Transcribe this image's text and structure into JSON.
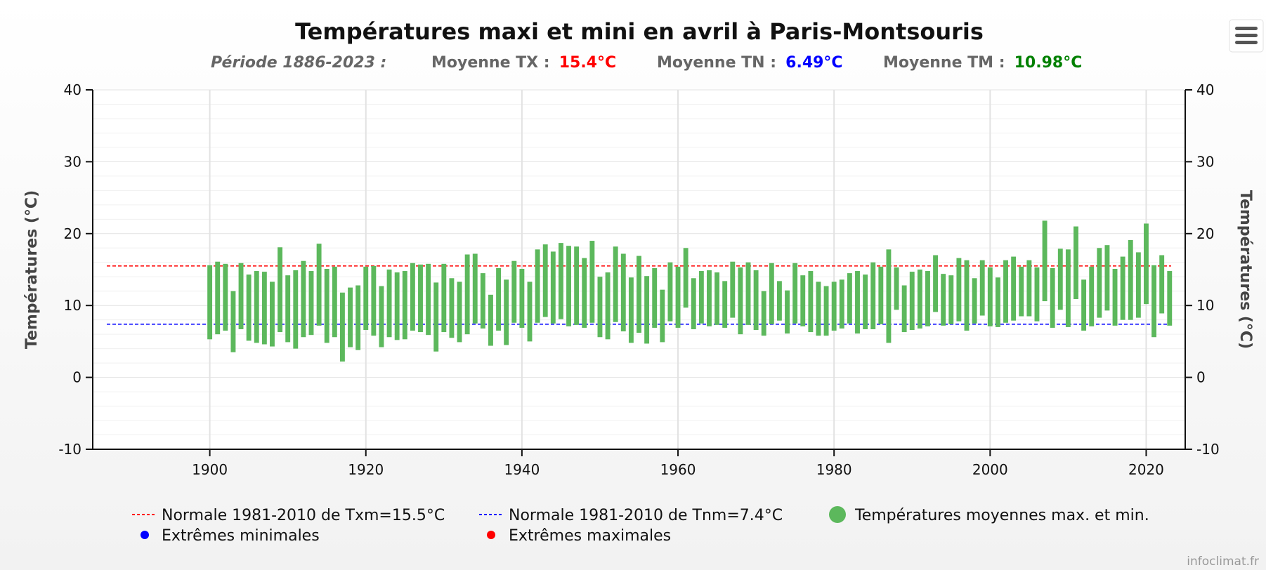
{
  "chart_data": {
    "type": "bar",
    "title": "Températures maxi et mini en avril à Paris-Montsouris",
    "subtitle": {
      "period": "Période 1886-2023 :",
      "tx_label": "Moyenne TX :",
      "tx_value": "15.4°C",
      "tn_label": "Moyenne TN :",
      "tn_value": "6.49°C",
      "tm_label": "Moyenne TM :",
      "tm_value": "10.98°C"
    },
    "ylabel_left": "Températures (°C)",
    "ylabel_right": "Températures (°C)",
    "ylim": [
      -10,
      40
    ],
    "xlim": [
      1885,
      2025
    ],
    "x_ticks": [
      "1900",
      "1920",
      "1940",
      "1960",
      "1980",
      "2000",
      "2020"
    ],
    "y_ticks": [
      "-10",
      "0",
      "10",
      "20",
      "30",
      "40"
    ],
    "grid": true,
    "legend_position": "bottom",
    "normals": [
      {
        "name": "Normale 1981-2010 de Txm=15.5°C",
        "value": 15.5,
        "color": "#ff0000"
      },
      {
        "name": "Normale 1981-2010 de Tnm=7.4°C",
        "value": 7.4,
        "color": "#0000ff"
      }
    ],
    "series": [
      {
        "name": "Températures moyennes max. et min.",
        "color": "#5cb85c",
        "type": "columnrange"
      },
      {
        "name": "Extrêmes minimales",
        "color": "#0000ff",
        "type": "scatter"
      },
      {
        "name": "Extrêmes maximales",
        "color": "#ff0000",
        "type": "scatter"
      }
    ],
    "years": [
      1900,
      1901,
      1902,
      1903,
      1904,
      1905,
      1906,
      1907,
      1908,
      1909,
      1910,
      1911,
      1912,
      1913,
      1914,
      1915,
      1916,
      1917,
      1918,
      1919,
      1920,
      1921,
      1922,
      1923,
      1924,
      1925,
      1926,
      1927,
      1928,
      1929,
      1930,
      1931,
      1932,
      1933,
      1934,
      1935,
      1936,
      1937,
      1938,
      1939,
      1940,
      1941,
      1942,
      1943,
      1944,
      1945,
      1946,
      1947,
      1948,
      1949,
      1950,
      1951,
      1952,
      1953,
      1954,
      1955,
      1956,
      1957,
      1958,
      1959,
      1960,
      1961,
      1962,
      1963,
      1964,
      1965,
      1966,
      1967,
      1968,
      1969,
      1970,
      1971,
      1972,
      1973,
      1974,
      1975,
      1976,
      1977,
      1978,
      1979,
      1980,
      1981,
      1982,
      1983,
      1984,
      1985,
      1986,
      1987,
      1988,
      1989,
      1990,
      1991,
      1992,
      1993,
      1994,
      1995,
      1996,
      1997,
      1998,
      1999,
      2000,
      2001,
      2002,
      2003,
      2004,
      2005,
      2006,
      2007,
      2008,
      2009,
      2010,
      2011,
      2012,
      2013,
      2014,
      2015,
      2016,
      2017,
      2018,
      2019,
      2020,
      2021,
      2022,
      2023
    ],
    "tmax": [
      15.6,
      16.1,
      15.8,
      12.0,
      15.9,
      14.3,
      14.8,
      14.7,
      13.3,
      18.1,
      14.2,
      14.9,
      16.2,
      14.8,
      18.6,
      15.1,
      15.4,
      11.8,
      12.5,
      12.8,
      15.4,
      15.5,
      12.7,
      15.0,
      14.6,
      14.8,
      15.9,
      15.7,
      15.8,
      13.2,
      15.8,
      13.8,
      13.3,
      17.1,
      17.2,
      14.5,
      11.5,
      15.2,
      13.6,
      16.2,
      15.1,
      13.3,
      17.8,
      18.5,
      17.5,
      18.7,
      18.3,
      18.2,
      16.6,
      19.0,
      14.0,
      14.6,
      18.2,
      17.2,
      13.9,
      16.9,
      14.1,
      15.2,
      12.2,
      16.0,
      15.4,
      18.0,
      13.8,
      14.8,
      14.9,
      14.6,
      13.4,
      16.1,
      15.3,
      16.0,
      14.9,
      12.0,
      15.9,
      13.4,
      12.1,
      15.9,
      14.2,
      14.8,
      13.3,
      12.7,
      13.3,
      13.6,
      14.5,
      14.8,
      14.3,
      16.0,
      15.4,
      17.8,
      15.3,
      12.8,
      14.7,
      15.0,
      14.8,
      17.0,
      14.4,
      14.2,
      16.6,
      16.3,
      13.8,
      16.3,
      15.3,
      13.9,
      16.3,
      16.8,
      15.4,
      16.3,
      15.3,
      21.8,
      15.2,
      17.9,
      17.8,
      21.0,
      13.6,
      15.4,
      18.0,
      18.4,
      15.1,
      16.8,
      19.1,
      17.4,
      21.4,
      15.6,
      17.0,
      14.8
    ],
    "tmin": [
      5.3,
      6.0,
      6.5,
      3.5,
      6.7,
      5.1,
      4.8,
      4.6,
      4.3,
      6.3,
      4.9,
      4.0,
      5.6,
      5.9,
      7.2,
      4.8,
      5.6,
      2.2,
      4.2,
      3.8,
      6.6,
      5.8,
      4.2,
      5.6,
      5.2,
      5.3,
      6.5,
      6.3,
      5.9,
      3.6,
      6.3,
      5.5,
      4.9,
      6.0,
      7.5,
      6.8,
      4.4,
      6.5,
      4.5,
      7.6,
      6.9,
      5.0,
      7.6,
      8.4,
      7.5,
      8.1,
      7.1,
      7.3,
      6.9,
      7.6,
      5.6,
      5.3,
      7.7,
      6.4,
      4.8,
      6.2,
      4.7,
      6.9,
      4.9,
      7.8,
      6.9,
      9.7,
      6.7,
      7.5,
      7.1,
      7.3,
      6.9,
      8.3,
      6.0,
      7.3,
      6.6,
      5.8,
      7.4,
      7.9,
      6.1,
      7.5,
      7.1,
      6.3,
      5.8,
      5.8,
      6.5,
      6.8,
      7.5,
      6.1,
      6.7,
      6.7,
      7.4,
      4.8,
      9.4,
      6.3,
      6.6,
      6.8,
      7.1,
      9.1,
      7.2,
      7.4,
      7.8,
      6.5,
      7.5,
      8.6,
      7.1,
      7.0,
      7.6,
      7.9,
      8.5,
      8.5,
      7.8,
      10.6,
      6.9,
      9.4,
      7.0,
      10.9,
      6.5,
      7.1,
      8.3,
      9.3,
      7.2,
      8.0,
      8.0,
      8.3,
      10.2,
      5.6,
      8.9,
      7.2
    ]
  },
  "ui": {
    "menu_icon": "hamburger-menu-icon",
    "credit": "infoclimat.fr"
  }
}
